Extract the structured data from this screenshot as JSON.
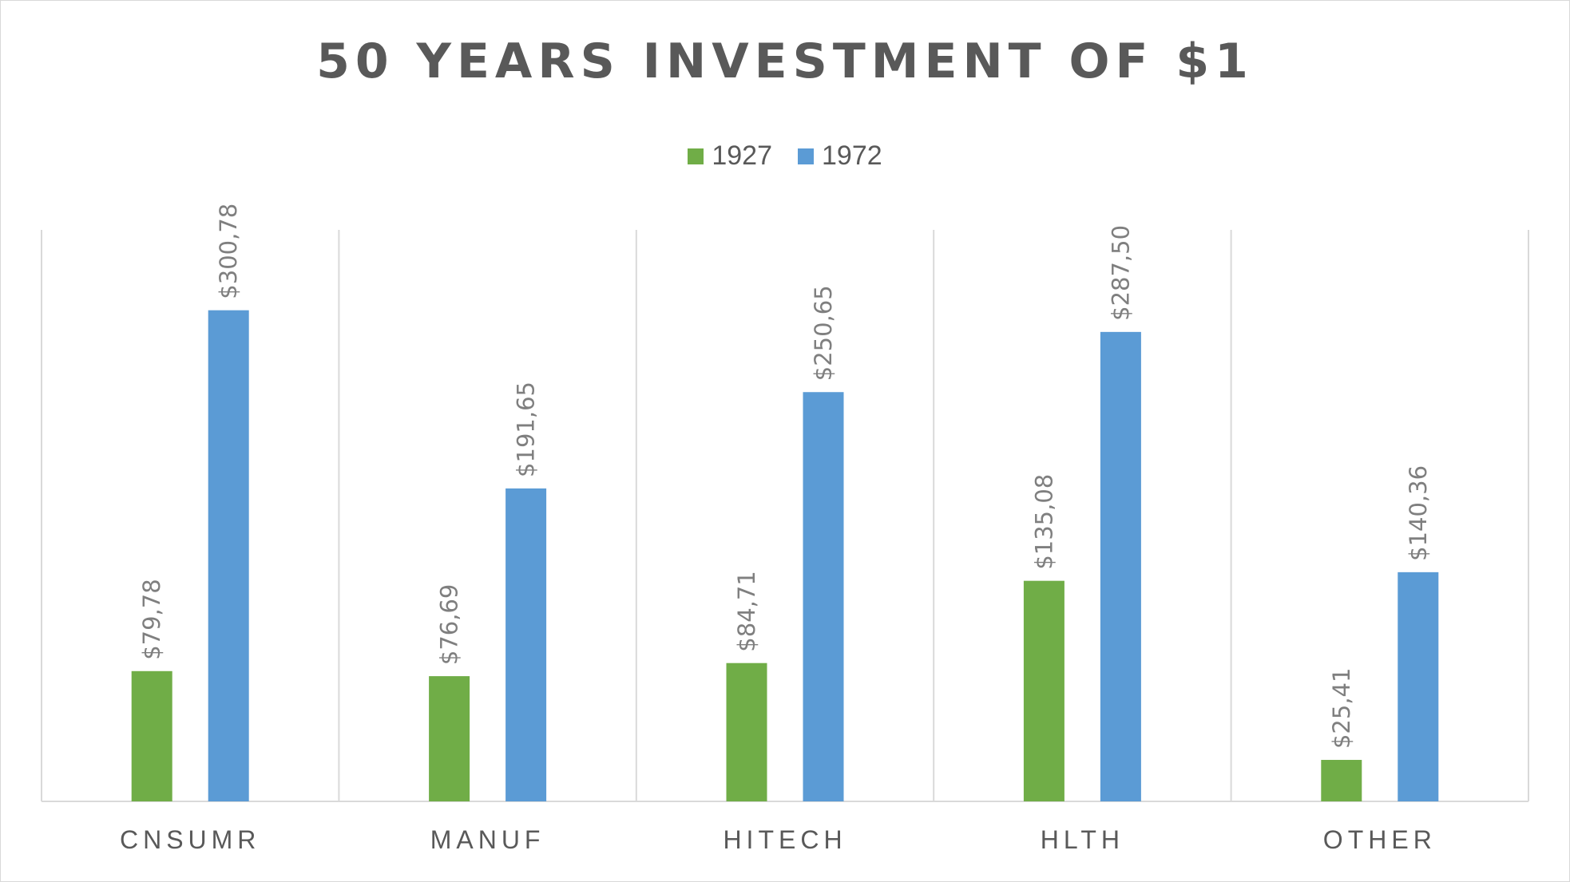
{
  "chart_data": {
    "type": "bar",
    "title": "50 YEARS INVESTMENT OF $1",
    "categories": [
      "CNSUMR",
      "MANUF",
      "HITECH",
      "HLTH",
      "OTHER"
    ],
    "series": [
      {
        "name": "1927",
        "color": "#70ad47",
        "values": [
          79.78,
          76.69,
          84.71,
          135.08,
          25.41
        ],
        "labels": [
          "$79,78",
          "$76,69",
          "$84,71",
          "$135,08",
          "$25,41"
        ]
      },
      {
        "name": "1972",
        "color": "#5b9bd5",
        "values": [
          300.78,
          191.65,
          250.65,
          287.5,
          140.36
        ],
        "labels": [
          "$300,78",
          "$191,65",
          "$250,65",
          "$287,50",
          "$140,36"
        ]
      }
    ],
    "ylim": [
      0,
      350
    ],
    "grid": "vertical category separators",
    "legend_position": "top-center",
    "xlabel": "",
    "ylabel": ""
  }
}
